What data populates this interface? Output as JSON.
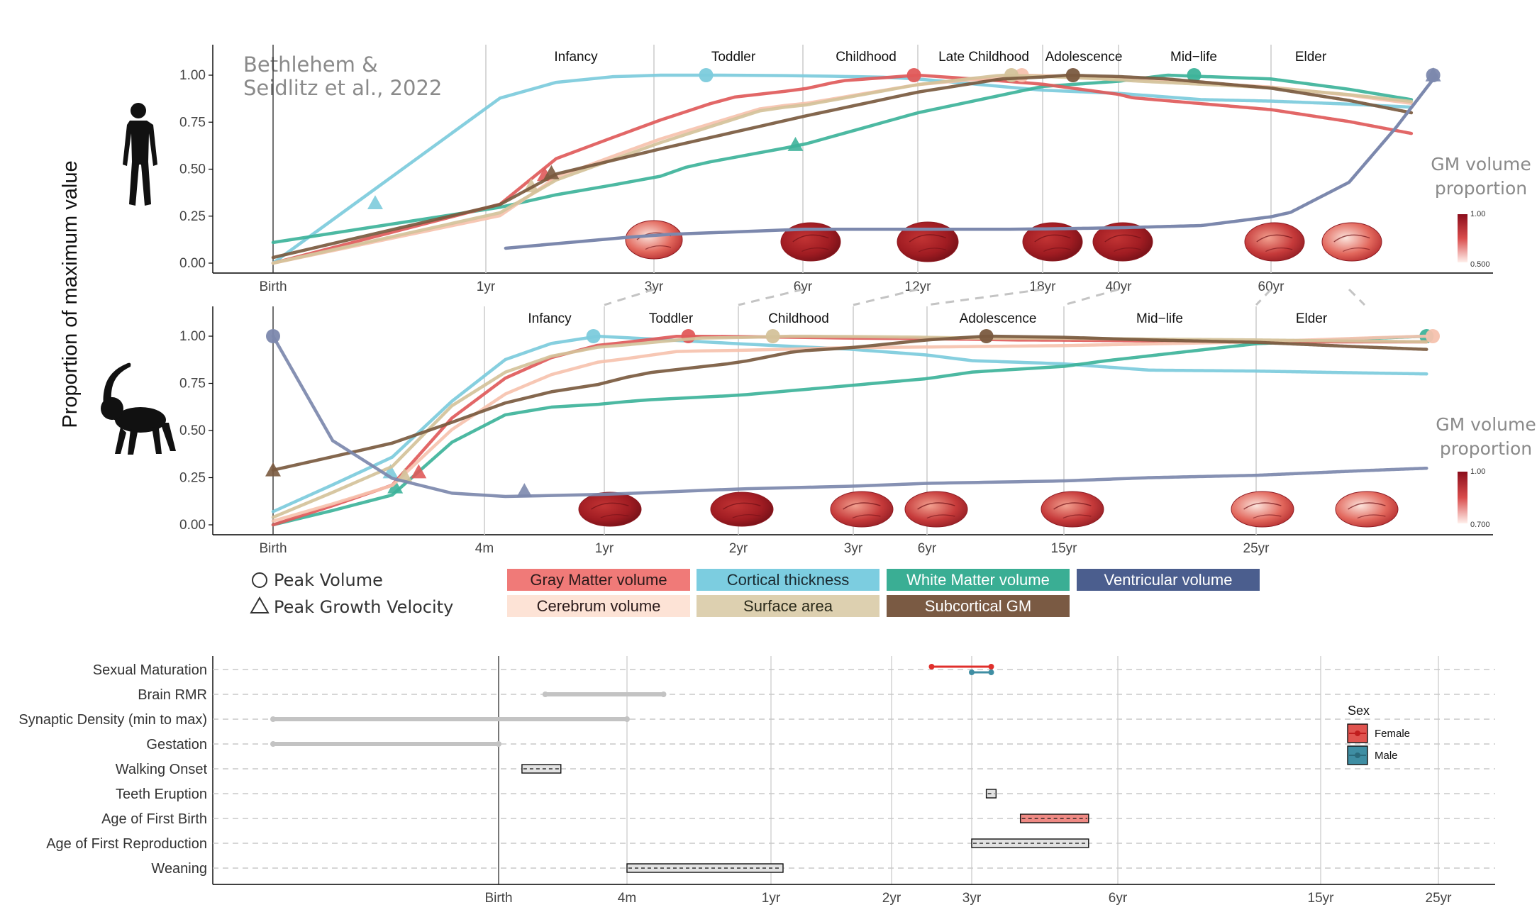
{
  "citation": [
    "Bethlehem &",
    "Seidlitz et al., 2022"
  ],
  "y_axis_label": "Proportion of maximum value",
  "gm_label": [
    "GM volume",
    "proportion"
  ],
  "series_styles": {
    "Gray Matter volume": "#e05a5a",
    "Cortical thickness": "#7ccbdc",
    "White Matter volume": "#3db39a",
    "Ventricular volume": "#7c88ad",
    "Cerebrum volume": "#f6c2ae",
    "Surface area": "#d4c29a",
    "Subcortical GM": "#7a5a3f"
  },
  "legend": {
    "shapes": [
      {
        "label": "Peak Volume",
        "shape": "circle"
      },
      {
        "label": "Peak Growth Velocity",
        "shape": "triangle"
      }
    ],
    "series": [
      {
        "label": "Gray Matter volume",
        "bg": "#f07a78",
        "fg": "#2a1a1a"
      },
      {
        "label": "Cortical thickness",
        "bg": "#7ccde0",
        "fg": "#1a2a30"
      },
      {
        "label": "White Matter volume",
        "bg": "#3aae94",
        "fg": "#ffffff"
      },
      {
        "label": "Ventricular volume",
        "bg": "#4b5e8e",
        "fg": "#ffffff"
      },
      {
        "label": "Cerebrum volume",
        "bg": "#fde3d6",
        "fg": "#2a1a1a"
      },
      {
        "label": "Surface area",
        "bg": "#ddd0b0",
        "fg": "#2a2a1a"
      },
      {
        "label": "Subcortical GM",
        "bg": "#7a5a43",
        "fg": "#ffffff"
      }
    ]
  },
  "chart_data": [
    {
      "id": "human",
      "type": "line",
      "ylim": [
        0,
        1
      ],
      "yticks": [
        "0.00",
        "0.25",
        "0.50",
        "0.75",
        "1.00"
      ],
      "x_ticks": [
        "Birth",
        "1yr",
        "3yr",
        "6yr",
        "12yr",
        "18yr",
        "40yr",
        "60yr"
      ],
      "stages": [
        "Infancy",
        "Toddler",
        "Childhood",
        "Late Childhood",
        "Adolescence",
        "Mid−life",
        "Elder"
      ],
      "colorbar": {
        "max": "1.00",
        "min": "0.500"
      },
      "series": [
        {
          "name": "Cortical thickness",
          "x": [
            -0.25,
            -0.1,
            -0.05,
            0,
            0.3,
            0.7,
            1.0,
            2.0,
            5,
            12,
            30,
            80
          ],
          "y": [
            0.0,
            0.3,
            0.6,
            0.85,
            0.95,
            0.99,
            1.0,
            1.0,
            0.99,
            0.92,
            0.87,
            0.83
          ],
          "peak": {
            "x": 1.7,
            "y": 1.0
          },
          "velocity": {
            "x": -0.13,
            "y": 0.32
          }
        },
        {
          "name": "White Matter volume",
          "x": [
            -0.25,
            -0.1,
            0,
            0.5,
            1.5,
            3,
            6,
            12,
            25,
            40,
            80
          ],
          "y": [
            0.11,
            0.2,
            0.28,
            0.38,
            0.52,
            0.63,
            0.8,
            0.94,
            1.0,
            0.98,
            0.87
          ],
          "peak": {
            "x": 28.9,
            "y": 1.0
          },
          "velocity": {
            "x": 2.9,
            "y": 0.63
          }
        },
        {
          "name": "Gray Matter volume",
          "x": [
            -0.25,
            -0.1,
            0,
            0.4,
            1.0,
            2.0,
            4.0,
            6.0,
            10,
            20,
            80
          ],
          "y": [
            0.0,
            0.05,
            0.25,
            0.55,
            0.75,
            0.88,
            0.97,
            1.0,
            0.97,
            0.88,
            0.69
          ],
          "peak": {
            "x": 5.9,
            "y": 1.0
          },
          "velocity": {
            "x": 0.35,
            "y": 0.47
          }
        },
        {
          "name": "Cerebrum volume",
          "x": [
            -0.25,
            -0.1,
            0,
            0.4,
            1.0,
            2.5,
            6,
            11,
            20,
            80
          ],
          "y": [
            0.0,
            0.02,
            0.2,
            0.45,
            0.65,
            0.83,
            0.95,
            1.0,
            0.98,
            0.85
          ],
          "peak": {
            "x": 11.0,
            "y": 1.0
          }
        },
        {
          "name": "Surface area",
          "x": [
            -0.25,
            -0.1,
            0,
            0.35,
            1.0,
            2.5,
            6,
            10,
            20,
            80
          ],
          "y": [
            0.0,
            0.03,
            0.22,
            0.42,
            0.63,
            0.82,
            0.95,
            1.0,
            0.97,
            0.86
          ],
          "peak": {
            "x": 10.5,
            "y": 1.0
          },
          "velocity": {
            "x": 0.27,
            "y": 0.41
          }
        },
        {
          "name": "Subcortical GM",
          "x": [
            -0.25,
            -0.1,
            0,
            0.4,
            1.0,
            3,
            6,
            10,
            14,
            25,
            80
          ],
          "y": [
            0.03,
            0.12,
            0.27,
            0.47,
            0.6,
            0.78,
            0.91,
            0.98,
            1.0,
            0.98,
            0.8
          ],
          "peak": {
            "x": 14.4,
            "y": 1.0
          },
          "velocity": {
            "x": 0.39,
            "y": 0.48
          }
        },
        {
          "name": "Ventricular volume",
          "x": [
            -0.25,
            -0.1,
            0,
            1.0,
            3,
            10,
            30,
            45,
            60,
            75,
            88
          ],
          "y": [
            0.0,
            0.03,
            0.07,
            0.15,
            0.18,
            0.18,
            0.2,
            0.27,
            0.43,
            0.72,
            1.0
          ],
          "dashed_until": 0,
          "peak": {
            "x": 87,
            "y": 1.0
          },
          "velocity": {
            "x": 87,
            "y": 1.0
          }
        }
      ]
    },
    {
      "id": "macaque",
      "type": "line",
      "ylim": [
        0,
        1
      ],
      "yticks": [
        "0.00",
        "0.25",
        "0.50",
        "0.75",
        "1.00"
      ],
      "x_ticks": [
        "Birth",
        "4m",
        "1yr",
        "2yr",
        "3yr",
        "6yr",
        "15yr",
        "25yr"
      ],
      "stages": [
        "Infancy",
        "Toddler",
        "Childhood",
        "Adolescence",
        "Mid−life",
        "Elder"
      ],
      "colorbar": {
        "max": "1.00",
        "min": "0.700"
      },
      "series": [
        {
          "name": "Cortical thickness",
          "x": [
            -0.45,
            -0.2,
            -0.05,
            0.05,
            0.15,
            0.3,
            1,
            4,
            10,
            30
          ],
          "y": [
            0.07,
            0.35,
            0.7,
            0.87,
            0.95,
            1.0,
            0.96,
            0.87,
            0.82,
            0.8
          ],
          "peak": {
            "x": 0.3,
            "y": 1.0
          },
          "velocity": {
            "x": -0.2,
            "y": 0.28
          }
        },
        {
          "name": "White Matter volume",
          "x": [
            -0.45,
            -0.2,
            -0.05,
            0.05,
            0.15,
            0.5,
            2,
            4,
            8,
            15,
            30
          ],
          "y": [
            0.0,
            0.15,
            0.48,
            0.58,
            0.62,
            0.66,
            0.74,
            0.81,
            0.87,
            0.96,
            1.0
          ],
          "peak": {
            "x": 30,
            "y": 1.0
          },
          "velocity": {
            "x": -0.19,
            "y": 0.2
          }
        },
        {
          "name": "Gray Matter volume",
          "x": [
            -0.45,
            -0.2,
            -0.05,
            0.1,
            0.3,
            0.7,
            2,
            5,
            15,
            30
          ],
          "y": [
            0.0,
            0.2,
            0.62,
            0.84,
            0.95,
            1.0,
            0.99,
            0.98,
            0.97,
            0.97
          ],
          "peak": {
            "x": 0.75,
            "y": 1.0
          },
          "velocity": {
            "x": -0.14,
            "y": 0.28
          }
        },
        {
          "name": "Cerebrum volume",
          "x": [
            -0.45,
            -0.2,
            -0.05,
            0.1,
            0.3,
            0.7,
            2,
            6,
            15,
            30
          ],
          "y": [
            0.02,
            0.2,
            0.55,
            0.75,
            0.86,
            0.92,
            0.94,
            0.95,
            0.97,
            1.0
          ],
          "peak": {
            "x": 30.5,
            "y": 1.0
          }
        },
        {
          "name": "Surface area",
          "x": [
            -0.45,
            -0.2,
            -0.05,
            0.1,
            0.3,
            0.8,
            1.5,
            4,
            15,
            30
          ],
          "y": [
            0.04,
            0.3,
            0.68,
            0.86,
            0.94,
            0.99,
            1.0,
            0.99,
            0.98,
            0.97
          ],
          "peak": {
            "x": 1.3,
            "y": 1.0
          },
          "velocity": {
            "x": -0.17,
            "y": 0.26
          }
        },
        {
          "name": "Subcortical GM",
          "x": [
            -0.45,
            -0.2,
            -0.05,
            0.1,
            0.5,
            1.5,
            3,
            4.3,
            10,
            30
          ],
          "y": [
            0.29,
            0.43,
            0.56,
            0.68,
            0.8,
            0.92,
            0.98,
            1.0,
            0.98,
            0.93
          ],
          "peak": {
            "x": 4.3,
            "y": 1.0
          },
          "velocity": {
            "x": -0.45,
            "y": 0.29
          }
        },
        {
          "name": "Ventricular volume",
          "x": [
            -0.45,
            -0.42,
            -0.35,
            -0.25,
            -0.15,
            -0.05,
            0.05,
            0.3,
            1,
            3,
            10,
            30
          ],
          "y": [
            1.0,
            0.75,
            0.5,
            0.3,
            0.2,
            0.16,
            0.15,
            0.16,
            0.19,
            0.22,
            0.25,
            0.3
          ],
          "peak": {
            "x": -0.45,
            "y": 1.0
          },
          "velocity": {
            "x": 0.11,
            "y": 0.18
          }
        }
      ]
    },
    {
      "id": "milestones",
      "type": "range",
      "x_ticks": [
        "Birth",
        "4m",
        "1yr",
        "2yr",
        "3yr",
        "6yr",
        "15yr",
        "25yr"
      ],
      "categories": [
        "Sexual Maturation",
        "Brain RMR",
        "Synaptic Density (min to max)",
        "Gestation",
        "Walking Onset",
        "Teeth Eruption",
        "Age of First Birth",
        "Age of First Reproduction",
        "Weaning"
      ],
      "sex_legend": {
        "title": "Sex",
        "items": [
          {
            "label": "Female",
            "color": "#e0544f"
          },
          {
            "label": "Male",
            "color": "#3f8ea3"
          }
        ]
      },
      "items": [
        {
          "category": "Sexual Maturation",
          "kind": "line",
          "sex": "Female",
          "start": 2.5,
          "end": 3.4
        },
        {
          "category": "Sexual Maturation",
          "kind": "line",
          "sex": "Male",
          "start": 3.0,
          "end": 3.4
        },
        {
          "category": "Brain RMR",
          "kind": "line",
          "sex": "none",
          "start": 0.12,
          "end": 0.5
        },
        {
          "category": "Synaptic Density (min to max)",
          "kind": "line",
          "sex": "none",
          "start": -0.45,
          "end": 0.33
        },
        {
          "category": "Gestation",
          "kind": "line",
          "sex": "none",
          "start": -0.45,
          "end": 0
        },
        {
          "category": "Walking Onset",
          "kind": "box",
          "sex": "none",
          "start": 0.06,
          "end": 0.16
        },
        {
          "category": "Teeth Eruption",
          "kind": "box",
          "sex": "none",
          "start": 3.3,
          "end": 3.5
        },
        {
          "category": "Age of First Birth",
          "kind": "box",
          "sex": "Female",
          "start": 4.0,
          "end": 5.4
        },
        {
          "category": "Age of First Reproduction",
          "kind": "box",
          "sex": "none",
          "start": 3.0,
          "end": 5.4
        },
        {
          "category": "Weaning",
          "kind": "box",
          "sex": "none",
          "start": 0.33,
          "end": 1.1
        }
      ]
    }
  ]
}
